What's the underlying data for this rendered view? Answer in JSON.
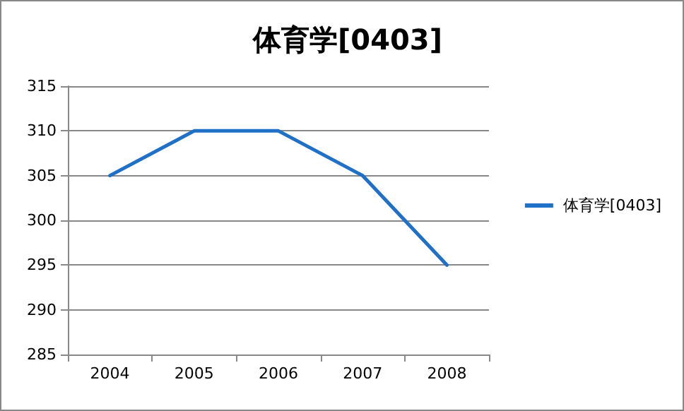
{
  "chart_data": {
    "type": "line",
    "title": "体育学[0403]",
    "categories": [
      "2004",
      "2005",
      "2006",
      "2007",
      "2008"
    ],
    "series": [
      {
        "name": "体育学[0403]",
        "color": "#2070c8",
        "values": [
          305,
          310,
          310,
          305,
          295
        ]
      }
    ],
    "ylim": [
      285,
      315
    ],
    "yticks": [
      285,
      290,
      295,
      300,
      305,
      310,
      315
    ],
    "grid": "y",
    "legend": "right",
    "marker": "none",
    "line_style": "solid"
  }
}
